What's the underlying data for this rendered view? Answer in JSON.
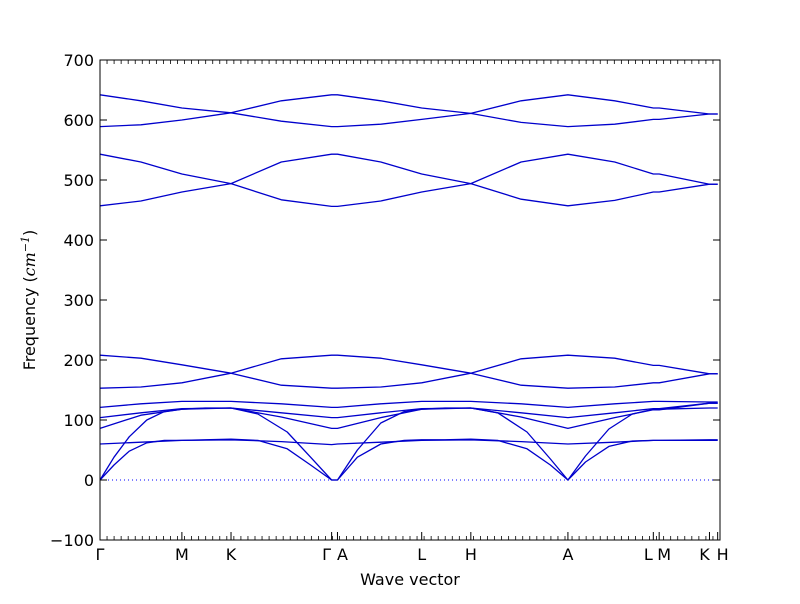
{
  "chart_data": {
    "type": "line",
    "title": "",
    "xlabel": "Wave vector",
    "ylabel": "Frequency",
    "ylabel_unit_base": "cm",
    "ylabel_unit_exp": "−1",
    "ylim": [
      -100,
      700
    ],
    "yticks": [
      -100,
      0,
      100,
      200,
      300,
      400,
      500,
      600,
      700
    ],
    "ytick_labels": [
      "−100",
      "0",
      "100",
      "200",
      "300",
      "400",
      "500",
      "600",
      "700"
    ],
    "xlim": [
      0,
      5.3
    ],
    "high_symmetry_points": [
      {
        "label": "Γ",
        "x": 0.0
      },
      {
        "label": "M",
        "x": 0.7
      },
      {
        "label": "K",
        "x": 1.12
      },
      {
        "label": "Γ",
        "x": 1.98
      },
      {
        "label": "A",
        "x": 2.03
      },
      {
        "label": "L",
        "x": 2.75
      },
      {
        "label": "H",
        "x": 3.17
      },
      {
        "label": "A",
        "x": 4.0
      },
      {
        "label": "L",
        "x": 4.73
      },
      {
        "label": "M",
        "x": 4.78
      },
      {
        "label": "K",
        "x": 5.21
      },
      {
        "label": "H",
        "x": 5.28
      }
    ],
    "zero_line": 0,
    "line_color": "#0000cc",
    "zero_line_color": "#0000ff",
    "series": [
      {
        "x": [
          0,
          0.35,
          0.7,
          1.12,
          1.55,
          1.98,
          2.03,
          2.4,
          2.75,
          3.17,
          3.6,
          4.0,
          4.4,
          4.73,
          4.78,
          5.21,
          5.28
        ],
        "values": [
          642,
          632,
          620,
          612,
          632,
          642,
          642,
          632,
          620,
          611,
          632,
          642,
          632,
          620,
          620,
          610,
          610
        ]
      },
      {
        "x": [
          0,
          0.35,
          0.7,
          1.12,
          1.55,
          1.98,
          2.03,
          2.4,
          2.75,
          3.17,
          3.6,
          4.0,
          4.4,
          4.73,
          4.78,
          5.21,
          5.28
        ],
        "values": [
          589,
          592,
          600,
          612,
          598,
          589,
          589,
          593,
          601,
          611,
          596,
          589,
          593,
          601,
          601,
          610,
          610
        ]
      },
      {
        "x": [
          0,
          0.35,
          0.7,
          1.12,
          1.55,
          1.98,
          2.03,
          2.4,
          2.75,
          3.17,
          3.6,
          4.0,
          4.4,
          4.73,
          4.78,
          5.21,
          5.28
        ],
        "values": [
          543,
          530,
          510,
          494,
          530,
          543,
          543,
          530,
          510,
          494,
          530,
          543,
          530,
          510,
          510,
          493,
          493
        ]
      },
      {
        "x": [
          0,
          0.35,
          0.7,
          1.12,
          1.55,
          1.98,
          2.03,
          2.4,
          2.75,
          3.17,
          3.6,
          4.0,
          4.4,
          4.73,
          4.78,
          5.21,
          5.28
        ],
        "values": [
          457,
          465,
          480,
          494,
          467,
          456,
          456,
          465,
          480,
          494,
          468,
          457,
          466,
          480,
          480,
          493,
          493
        ]
      },
      {
        "x": [
          0,
          0.35,
          0.7,
          1.12,
          1.55,
          1.98,
          2.03,
          2.4,
          2.75,
          3.17,
          3.6,
          4.0,
          4.4,
          4.73,
          4.78,
          5.21,
          5.28
        ],
        "values": [
          208,
          203,
          192,
          178,
          202,
          208,
          208,
          203,
          192,
          178,
          202,
          208,
          203,
          191,
          191,
          177,
          177
        ]
      },
      {
        "x": [
          0,
          0.35,
          0.7,
          1.12,
          1.55,
          1.98,
          2.03,
          2.4,
          2.75,
          3.17,
          3.6,
          4.0,
          4.4,
          4.73,
          4.78,
          5.21,
          5.28
        ],
        "values": [
          153,
          155,
          162,
          178,
          158,
          153,
          153,
          155,
          162,
          178,
          158,
          153,
          155,
          162,
          162,
          177,
          177
        ]
      },
      {
        "x": [
          0,
          0.35,
          0.7,
          1.12,
          1.55,
          1.98,
          2.03,
          2.4,
          2.75,
          3.17,
          3.6,
          4.0,
          4.4,
          4.73,
          4.78,
          5.21,
          5.28
        ],
        "values": [
          121,
          127,
          131,
          131,
          127,
          121,
          121,
          127,
          131,
          131,
          127,
          121,
          127,
          131,
          131,
          130,
          130
        ]
      },
      {
        "x": [
          0,
          0.35,
          0.7,
          1.12,
          1.55,
          1.98,
          2.03,
          2.4,
          2.75,
          3.17,
          3.6,
          4.0,
          4.4,
          4.73,
          4.78,
          5.21,
          5.28
        ],
        "values": [
          104,
          112,
          119,
          120,
          112,
          104,
          104,
          112,
          119,
          120,
          112,
          104,
          112,
          119,
          119,
          128,
          128
        ]
      },
      {
        "x": [
          0,
          0.35,
          0.7,
          1.12,
          1.55,
          1.98,
          2.03,
          2.4,
          2.75,
          3.17,
          3.6,
          4.0,
          4.4,
          4.73,
          4.78,
          5.21,
          5.28
        ],
        "values": [
          86,
          108,
          118,
          120,
          105,
          86,
          86,
          104,
          118,
          120,
          105,
          86,
          104,
          117,
          117,
          128,
          128
        ]
      },
      {
        "x": [
          0,
          0.12,
          0.25,
          0.4,
          0.55,
          0.7,
          0.9,
          1.12,
          1.35,
          1.6,
          1.8,
          1.98,
          2.03,
          2.2,
          2.4,
          2.6,
          2.75,
          2.95,
          3.17,
          3.4,
          3.65,
          3.85,
          4.0,
          4.15,
          4.35,
          4.55,
          4.73,
          4.78,
          5.21,
          5.28
        ],
        "values": [
          0,
          38,
          72,
          100,
          114,
          118,
          120,
          120,
          110,
          80,
          38,
          0,
          0,
          50,
          95,
          114,
          118,
          120,
          120,
          112,
          80,
          35,
          0,
          40,
          85,
          110,
          118,
          118,
          120,
          120
        ]
      },
      {
        "x": [
          0,
          0.12,
          0.25,
          0.4,
          0.55,
          0.7,
          0.9,
          1.12,
          1.35,
          1.6,
          1.8,
          1.98,
          2.03,
          2.2,
          2.4,
          2.6,
          2.75,
          2.95,
          3.17,
          3.4,
          3.65,
          3.85,
          4.0,
          4.15,
          4.35,
          4.55,
          4.73,
          4.78,
          5.21,
          5.28
        ],
        "values": [
          0,
          25,
          48,
          62,
          66,
          66,
          67,
          68,
          66,
          52,
          25,
          0,
          0,
          38,
          60,
          66,
          67,
          67,
          68,
          66,
          52,
          25,
          0,
          30,
          56,
          65,
          66,
          66,
          67,
          67
        ]
      },
      {
        "x": [
          0,
          0.35,
          0.7,
          1.12,
          1.55,
          1.98,
          2.03,
          2.4,
          2.75,
          3.17,
          3.6,
          4.0,
          4.4,
          4.73,
          4.78,
          5.21,
          5.28
        ],
        "values": [
          60,
          63,
          66,
          67,
          64,
          59,
          60,
          63,
          66,
          67,
          64,
          60,
          63,
          66,
          66,
          66,
          66
        ]
      }
    ]
  }
}
